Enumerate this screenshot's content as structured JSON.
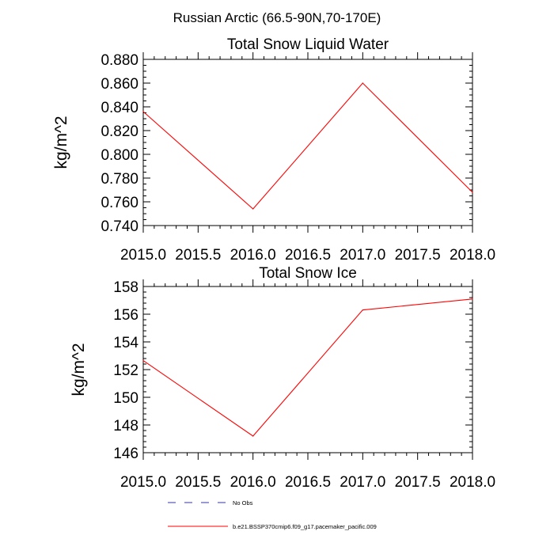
{
  "figure_title": "Russian Arctic (66.5-90N,70-170E)",
  "colors": {
    "model": "#ff0000",
    "obs": "#0000cc",
    "axis": "#000000"
  },
  "legend": {
    "items": [
      {
        "label": "No Obs",
        "style": "dashed",
        "color": "#3333aa"
      },
      {
        "label": "b.e21.BSSP370cmip6.f09_g17.pacemaker_pacific.009",
        "style": "solid",
        "color": "#ff0000"
      }
    ]
  },
  "chart_data": [
    {
      "type": "line",
      "title": "Total Snow Liquid Water",
      "xlabel": "",
      "ylabel": "kg/m^2",
      "xlim": [
        2015.0,
        2018.0
      ],
      "ylim": [
        0.74,
        0.88
      ],
      "xticks": [
        "2015.0",
        "2015.5",
        "2016.0",
        "2016.5",
        "2017.0",
        "2017.5",
        "2018.0"
      ],
      "yticks": [
        "0.740",
        "0.760",
        "0.780",
        "0.800",
        "0.820",
        "0.840",
        "0.860",
        "0.880"
      ],
      "x": [
        2015.0,
        2016.0,
        2017.0,
        2018.0
      ],
      "series": [
        {
          "values": [
            0.836,
            0.754,
            0.86,
            0.768
          ]
        }
      ],
      "grid": false
    },
    {
      "type": "line",
      "title": "Total Snow Ice",
      "xlabel": "",
      "ylabel": "kg/m^2",
      "xlim": [
        2015.0,
        2018.0
      ],
      "ylim": [
        146,
        158
      ],
      "xticks": [
        "2015.0",
        "2015.5",
        "2016.0",
        "2016.5",
        "2017.0",
        "2017.5",
        "2018.0"
      ],
      "yticks": [
        "146",
        "148",
        "150",
        "152",
        "154",
        "156",
        "158"
      ],
      "x": [
        2015.0,
        2016.0,
        2017.0,
        2018.0
      ],
      "series": [
        {
          "values": [
            152.65,
            147.2,
            156.3,
            157.1
          ]
        }
      ],
      "grid": false
    }
  ]
}
